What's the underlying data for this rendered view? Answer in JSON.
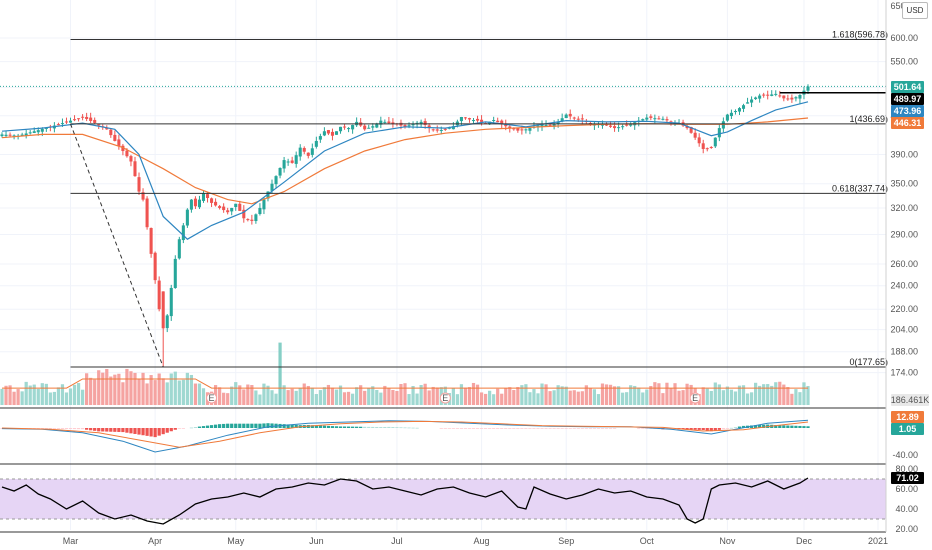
{
  "currency_button": "USD",
  "colors": {
    "up": "#26a69a",
    "down": "#ef5350",
    "ma_fast": "#2e86c1",
    "ma_slow": "#f07a3a",
    "macd": "#2e86c1",
    "signal": "#f07a3a",
    "rsi": "#000000",
    "rsi_band": "#e6d5f5",
    "volume_ma": "#f07a3a"
  },
  "chart_data": [
    {
      "type": "candlestick",
      "panel": "price",
      "scale": "log",
      "y_ticks": [
        "600.00",
        "550.00",
        "500.00",
        "450.00",
        "390.00",
        "350.00",
        "320.00",
        "290.00",
        "260.00",
        "240.00",
        "220.00",
        "204.00",
        "188.00",
        "174.00"
      ],
      "top_tick": "650.00",
      "x_ticks": [
        "Mar",
        "Apr",
        "May",
        "Jun",
        "Jul",
        "Aug",
        "Sep",
        "Oct",
        "Nov",
        "Dec",
        "2021"
      ],
      "fib_levels": [
        {
          "label": "1.618(596.78)",
          "value": 596.78
        },
        {
          "label": "1(436.69)",
          "value": 436.69
        },
        {
          "label": "0.618(337.74)",
          "value": 337.74
        },
        {
          "label": "0(177.65)",
          "value": 177.65
        }
      ],
      "horizontal_line": 489.97,
      "price_tags": [
        {
          "label": "501.64",
          "value": 501.64,
          "color": "#26a69a"
        },
        {
          "label": "489.97",
          "value": 489.97,
          "color": "#000000"
        },
        {
          "label": "473.96",
          "value": 473.96,
          "color": "#2e86c1"
        },
        {
          "label": "446.31",
          "value": 446.31,
          "color": "#f07a3a"
        }
      ],
      "close_path": [
        [
          0,
          420
        ],
        [
          4,
          418
        ],
        [
          8,
          425
        ],
        [
          12,
          432
        ],
        [
          16,
          440
        ],
        [
          20,
          448
        ],
        [
          24,
          435
        ],
        [
          26,
          428
        ],
        [
          28,
          410
        ],
        [
          30,
          395
        ],
        [
          32,
          380
        ],
        [
          34,
          340
        ],
        [
          35,
          330
        ],
        [
          36,
          298
        ],
        [
          37,
          270
        ],
        [
          38,
          245
        ],
        [
          39,
          220
        ],
        [
          40,
          205
        ],
        [
          41,
          215
        ],
        [
          42,
          238
        ],
        [
          43,
          265
        ],
        [
          44,
          285
        ],
        [
          45,
          300
        ],
        [
          46,
          318
        ],
        [
          47,
          330
        ],
        [
          48,
          322
        ],
        [
          50,
          338
        ],
        [
          52,
          326
        ],
        [
          54,
          320
        ],
        [
          56,
          315
        ],
        [
          58,
          325
        ],
        [
          60,
          308
        ],
        [
          62,
          305
        ],
        [
          64,
          320
        ],
        [
          66,
          340
        ],
        [
          68,
          360
        ],
        [
          70,
          382
        ],
        [
          72,
          378
        ],
        [
          74,
          400
        ],
        [
          76,
          388
        ],
        [
          78,
          410
        ],
        [
          80,
          425
        ],
        [
          82,
          418
        ],
        [
          84,
          432
        ],
        [
          86,
          430
        ],
        [
          88,
          440
        ],
        [
          90,
          428
        ],
        [
          92,
          433
        ],
        [
          94,
          442
        ],
        [
          96,
          438
        ],
        [
          98,
          436
        ],
        [
          100,
          432
        ],
        [
          102,
          437
        ],
        [
          104,
          440
        ],
        [
          106,
          430
        ],
        [
          108,
          426
        ],
        [
          110,
          428
        ],
        [
          112,
          433
        ],
        [
          114,
          448
        ],
        [
          116,
          444
        ],
        [
          118,
          442
        ],
        [
          120,
          438
        ],
        [
          122,
          443
        ],
        [
          124,
          436
        ],
        [
          126,
          430
        ],
        [
          128,
          426
        ],
        [
          130,
          428
        ],
        [
          132,
          432
        ],
        [
          134,
          436
        ],
        [
          136,
          434
        ],
        [
          138,
          440
        ],
        [
          140,
          452
        ],
        [
          142,
          446
        ],
        [
          144,
          444
        ],
        [
          146,
          436
        ],
        [
          148,
          437
        ],
        [
          150,
          434
        ],
        [
          152,
          430
        ],
        [
          154,
          433
        ],
        [
          156,
          437
        ],
        [
          158,
          442
        ],
        [
          160,
          447
        ],
        [
          162,
          446
        ],
        [
          164,
          445
        ],
        [
          166,
          440
        ],
        [
          168,
          438
        ],
        [
          170,
          430
        ],
        [
          172,
          415
        ],
        [
          174,
          398
        ],
        [
          176,
          400
        ],
        [
          178,
          430
        ],
        [
          180,
          452
        ],
        [
          182,
          458
        ],
        [
          184,
          468
        ],
        [
          186,
          478
        ],
        [
          188,
          485
        ],
        [
          190,
          486
        ],
        [
          192,
          488
        ],
        [
          194,
          480
        ],
        [
          196,
          478
        ],
        [
          198,
          486
        ],
        [
          200,
          501.64
        ]
      ],
      "ma_fast_path": [
        [
          0,
          425
        ],
        [
          10,
          430
        ],
        [
          20,
          438
        ],
        [
          28,
          428
        ],
        [
          34,
          390
        ],
        [
          40,
          310
        ],
        [
          46,
          285
        ],
        [
          52,
          300
        ],
        [
          60,
          315
        ],
        [
          70,
          352
        ],
        [
          80,
          395
        ],
        [
          90,
          422
        ],
        [
          100,
          432
        ],
        [
          110,
          430
        ],
        [
          120,
          440
        ],
        [
          130,
          432
        ],
        [
          140,
          442
        ],
        [
          150,
          440
        ],
        [
          160,
          441
        ],
        [
          168,
          438
        ],
        [
          176,
          418
        ],
        [
          180,
          424
        ],
        [
          186,
          442
        ],
        [
          192,
          460
        ],
        [
          200,
          473.96
        ]
      ],
      "ma_slow_path": [
        [
          0,
          415
        ],
        [
          10,
          420
        ],
        [
          20,
          420
        ],
        [
          30,
          400
        ],
        [
          40,
          370
        ],
        [
          48,
          345
        ],
        [
          56,
          330
        ],
        [
          62,
          325
        ],
        [
          70,
          340
        ],
        [
          80,
          370
        ],
        [
          90,
          395
        ],
        [
          100,
          412
        ],
        [
          110,
          422
        ],
        [
          120,
          428
        ],
        [
          130,
          431
        ],
        [
          140,
          434
        ],
        [
          150,
          436
        ],
        [
          160,
          437
        ],
        [
          170,
          436
        ],
        [
          180,
          436
        ],
        [
          190,
          440
        ],
        [
          200,
          446.31
        ]
      ],
      "volume_spike_day": 69,
      "volume_spike_value": 4.8,
      "earnings_days": [
        52,
        110,
        172
      ]
    },
    {
      "type": "bar",
      "panel": "volume",
      "label": "186.461K",
      "earnings_marker": "E"
    },
    {
      "type": "line",
      "panel": "macd",
      "y_ticks": [
        "-40.00"
      ],
      "tags": [
        {
          "label": "12.89",
          "color": "#f07a3a"
        },
        {
          "label": "1.05",
          "color": "#26a69a"
        }
      ]
    },
    {
      "type": "line",
      "panel": "rsi",
      "y_ticks": [
        "80.00",
        "60.00",
        "40.00",
        "20.00"
      ],
      "ylim": [
        20,
        80
      ],
      "band": [
        30,
        70
      ],
      "value_label": "71.02",
      "value": 71.02,
      "path": [
        [
          0,
          62
        ],
        [
          3,
          58
        ],
        [
          6,
          64
        ],
        [
          9,
          55
        ],
        [
          12,
          50
        ],
        [
          16,
          40
        ],
        [
          20,
          48
        ],
        [
          24,
          36
        ],
        [
          28,
          30
        ],
        [
          32,
          34
        ],
        [
          36,
          28
        ],
        [
          40,
          25
        ],
        [
          44,
          34
        ],
        [
          48,
          45
        ],
        [
          52,
          50
        ],
        [
          56,
          52
        ],
        [
          60,
          56
        ],
        [
          64,
          52
        ],
        [
          68,
          60
        ],
        [
          72,
          62
        ],
        [
          76,
          66
        ],
        [
          80,
          64
        ],
        [
          84,
          70
        ],
        [
          88,
          68
        ],
        [
          92,
          60
        ],
        [
          96,
          62
        ],
        [
          100,
          58
        ],
        [
          104,
          54
        ],
        [
          108,
          60
        ],
        [
          112,
          62
        ],
        [
          116,
          56
        ],
        [
          120,
          52
        ],
        [
          124,
          58
        ],
        [
          128,
          42
        ],
        [
          130,
          40
        ],
        [
          132,
          62
        ],
        [
          136,
          55
        ],
        [
          140,
          50
        ],
        [
          144,
          54
        ],
        [
          148,
          60
        ],
        [
          152,
          56
        ],
        [
          156,
          58
        ],
        [
          160,
          52
        ],
        [
          164,
          50
        ],
        [
          168,
          44
        ],
        [
          170,
          30
        ],
        [
          172,
          26
        ],
        [
          174,
          30
        ],
        [
          176,
          60
        ],
        [
          178,
          64
        ],
        [
          182,
          66
        ],
        [
          186,
          62
        ],
        [
          190,
          68
        ],
        [
          194,
          60
        ],
        [
          198,
          66
        ],
        [
          200,
          71.02
        ]
      ]
    }
  ]
}
